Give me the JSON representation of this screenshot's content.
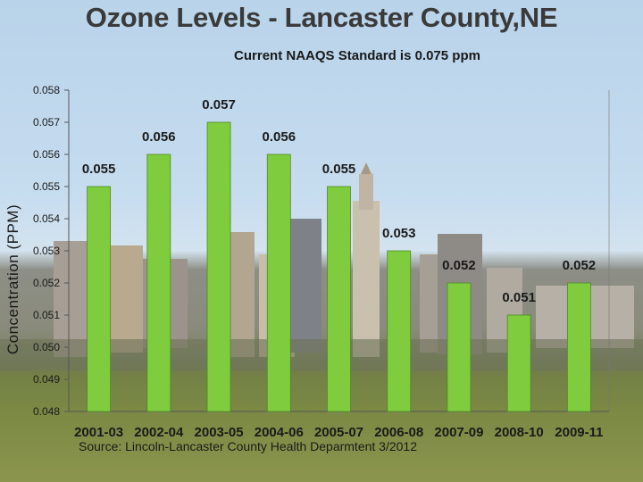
{
  "title": "Ozone Levels - Lancaster County,NE",
  "chart_data": {
    "type": "bar",
    "title": "Current NAAQS Standard is 0.075 ppm",
    "xlabel": "",
    "ylabel": "Concentration (PPM)",
    "categories": [
      "2001-03",
      "2002-04",
      "2003-05",
      "2004-06",
      "2005-07",
      "2006-08",
      "2007-09",
      "2008-10",
      "2009-11"
    ],
    "values": [
      0.055,
      0.056,
      0.057,
      0.056,
      0.055,
      0.053,
      0.052,
      0.051,
      0.052
    ],
    "data_labels": [
      "0.055",
      "0.056",
      "0.057",
      "0.056",
      "0.055",
      "0.053",
      "0.052",
      "0.051",
      "0.052"
    ],
    "ylim": [
      0.048,
      0.058
    ],
    "yticks": [
      "0.048",
      "0.049",
      "0.050",
      "0.051",
      "0.052",
      "0.053",
      "0.054",
      "0.055",
      "0.056",
      "0.057",
      "0.058"
    ],
    "grid": false,
    "bar_color": "#7fcc3f",
    "bar_edge": "#4e8a22"
  },
  "source": "Source:  Lincoln-Lancaster County Health Deparmtent  3/2012"
}
